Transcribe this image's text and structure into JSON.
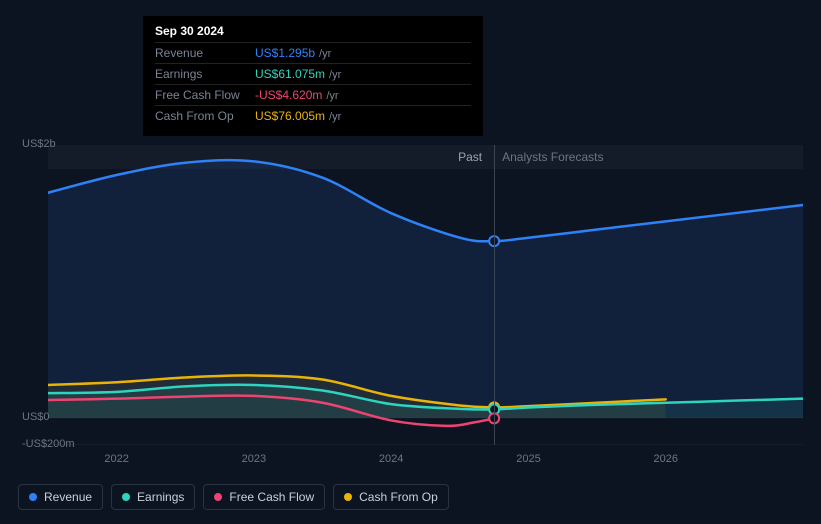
{
  "tooltip": {
    "date": "Sep 30 2024",
    "rows": [
      {
        "label": "Revenue",
        "value": "US$1.295b",
        "color": "#2f81f7",
        "suffix": "/yr"
      },
      {
        "label": "Earnings",
        "value": "US$61.075m",
        "color": "#2dd4bf",
        "suffix": "/yr"
      },
      {
        "label": "Free Cash Flow",
        "value": "-US$4.620m",
        "color": "#ef4471",
        "suffix": "/yr"
      },
      {
        "label": "Cash From Op",
        "value": "US$76.005m",
        "color": "#eab308",
        "suffix": "/yr"
      }
    ]
  },
  "chart": {
    "widthPx": 755,
    "heightPx": 300,
    "background": "#0d1421",
    "gridColor": "#1f2733",
    "yAxis": {
      "min": -200,
      "max": 2000,
      "ticks": [
        {
          "v": 2000,
          "label": "US$2b"
        },
        {
          "v": 0,
          "label": "US$0"
        },
        {
          "v": -200,
          "label": "-US$200m"
        }
      ]
    },
    "xAxis": {
      "min": 2021.5,
      "max": 2027,
      "ticks": [
        {
          "v": 2022,
          "label": "2022"
        },
        {
          "v": 2023,
          "label": "2023"
        },
        {
          "v": 2024,
          "label": "2024"
        },
        {
          "v": 2025,
          "label": "2025"
        },
        {
          "v": 2026,
          "label": "2026"
        }
      ]
    },
    "divider": {
      "x": 2024.75,
      "pastLabel": "Past",
      "forecastLabel": "Analysts Forecasts"
    },
    "marker": {
      "x": 2024.75
    },
    "series": [
      {
        "id": "revenue",
        "name": "Revenue",
        "color": "#2f81f7",
        "width": 2.5,
        "fill": true,
        "fillOpacity": 0.12,
        "markerY": 1295,
        "points": [
          [
            2021.5,
            1650
          ],
          [
            2022,
            1780
          ],
          [
            2022.5,
            1870
          ],
          [
            2023,
            1880
          ],
          [
            2023.5,
            1760
          ],
          [
            2024,
            1500
          ],
          [
            2024.5,
            1320
          ],
          [
            2024.75,
            1295
          ],
          [
            2025,
            1320
          ],
          [
            2025.5,
            1380
          ],
          [
            2026,
            1440
          ],
          [
            2026.5,
            1500
          ],
          [
            2027,
            1560
          ]
        ]
      },
      {
        "id": "cashop",
        "name": "Cash From Op",
        "color": "#eab308",
        "width": 2.5,
        "fill": true,
        "fillOpacity": 0.08,
        "markerY": 76,
        "endX": 2026,
        "points": [
          [
            2021.5,
            240
          ],
          [
            2022,
            260
          ],
          [
            2022.5,
            295
          ],
          [
            2023,
            310
          ],
          [
            2023.5,
            280
          ],
          [
            2024,
            160
          ],
          [
            2024.5,
            90
          ],
          [
            2024.75,
            76
          ],
          [
            2025,
            85
          ],
          [
            2025.5,
            110
          ],
          [
            2026,
            135
          ]
        ]
      },
      {
        "id": "earnings",
        "name": "Earnings",
        "color": "#2dd4bf",
        "width": 2.5,
        "fill": true,
        "fillOpacity": 0.1,
        "markerY": 61,
        "points": [
          [
            2021.5,
            180
          ],
          [
            2022,
            190
          ],
          [
            2022.5,
            230
          ],
          [
            2023,
            240
          ],
          [
            2023.5,
            200
          ],
          [
            2024,
            100
          ],
          [
            2024.5,
            65
          ],
          [
            2024.75,
            61
          ],
          [
            2025,
            75
          ],
          [
            2025.5,
            95
          ],
          [
            2026,
            110
          ],
          [
            2026.5,
            125
          ],
          [
            2027,
            140
          ]
        ]
      },
      {
        "id": "fcf",
        "name": "Free Cash Flow",
        "color": "#ef4471",
        "width": 2.5,
        "fill": false,
        "markerY": -4.6,
        "endX": 2024.75,
        "points": [
          [
            2021.5,
            130
          ],
          [
            2022,
            140
          ],
          [
            2022.5,
            155
          ],
          [
            2023,
            160
          ],
          [
            2023.5,
            110
          ],
          [
            2024,
            -20
          ],
          [
            2024.4,
            -60
          ],
          [
            2024.6,
            -35
          ],
          [
            2024.75,
            -4.6
          ]
        ]
      }
    ]
  },
  "legend": [
    {
      "id": "revenue",
      "label": "Revenue",
      "color": "#2f81f7"
    },
    {
      "id": "earnings",
      "label": "Earnings",
      "color": "#2dd4bf"
    },
    {
      "id": "fcf",
      "label": "Free Cash Flow",
      "color": "#ef4471"
    },
    {
      "id": "cashop",
      "label": "Cash From Op",
      "color": "#eab308"
    }
  ]
}
